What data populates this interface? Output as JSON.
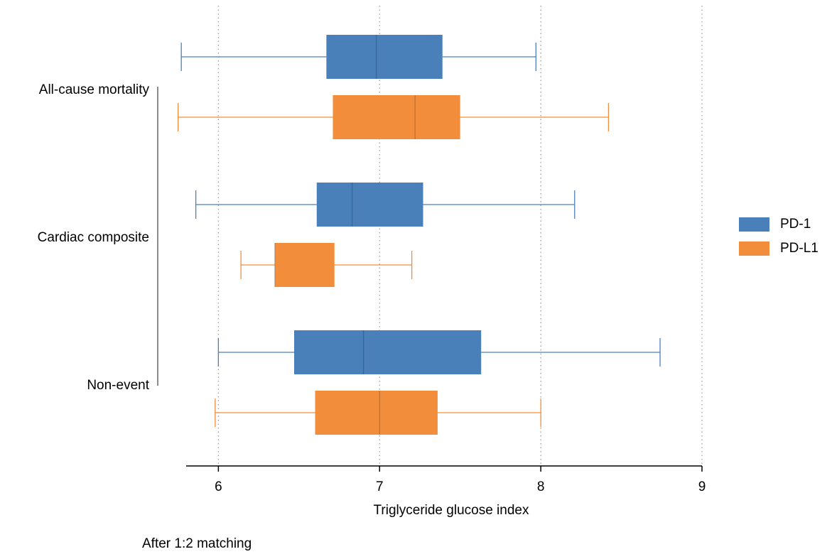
{
  "chart_data": {
    "type": "boxplot",
    "orientation": "horizontal",
    "categories": [
      "All-cause mortality",
      "Cardiac composite",
      "Non-event"
    ],
    "series": [
      {
        "name": "PD-1",
        "color": "#4a80b9",
        "whisker_low": [
          5.77,
          5.86,
          6.0
        ],
        "q1": [
          6.67,
          6.61,
          6.47
        ],
        "median": [
          6.98,
          6.83,
          6.9
        ],
        "q3": [
          7.39,
          7.27,
          7.63
        ],
        "whisker_high": [
          7.97,
          8.21,
          8.74
        ]
      },
      {
        "name": "PD-L1",
        "color": "#f28e3b",
        "whisker_low": [
          5.75,
          6.14,
          5.98
        ],
        "q1": [
          6.71,
          6.35,
          6.6
        ],
        "median": [
          7.22,
          6.35,
          7.0
        ],
        "q3": [
          7.5,
          6.72,
          7.36
        ],
        "whisker_high": [
          8.42,
          7.2,
          8.0
        ]
      }
    ],
    "x_label": "Triglyceride glucose index",
    "note": "After 1:2 matching",
    "xlim": [
      5.8,
      9
    ],
    "xticks": [
      6,
      7,
      8,
      9
    ],
    "grid": true,
    "legend": "right"
  }
}
